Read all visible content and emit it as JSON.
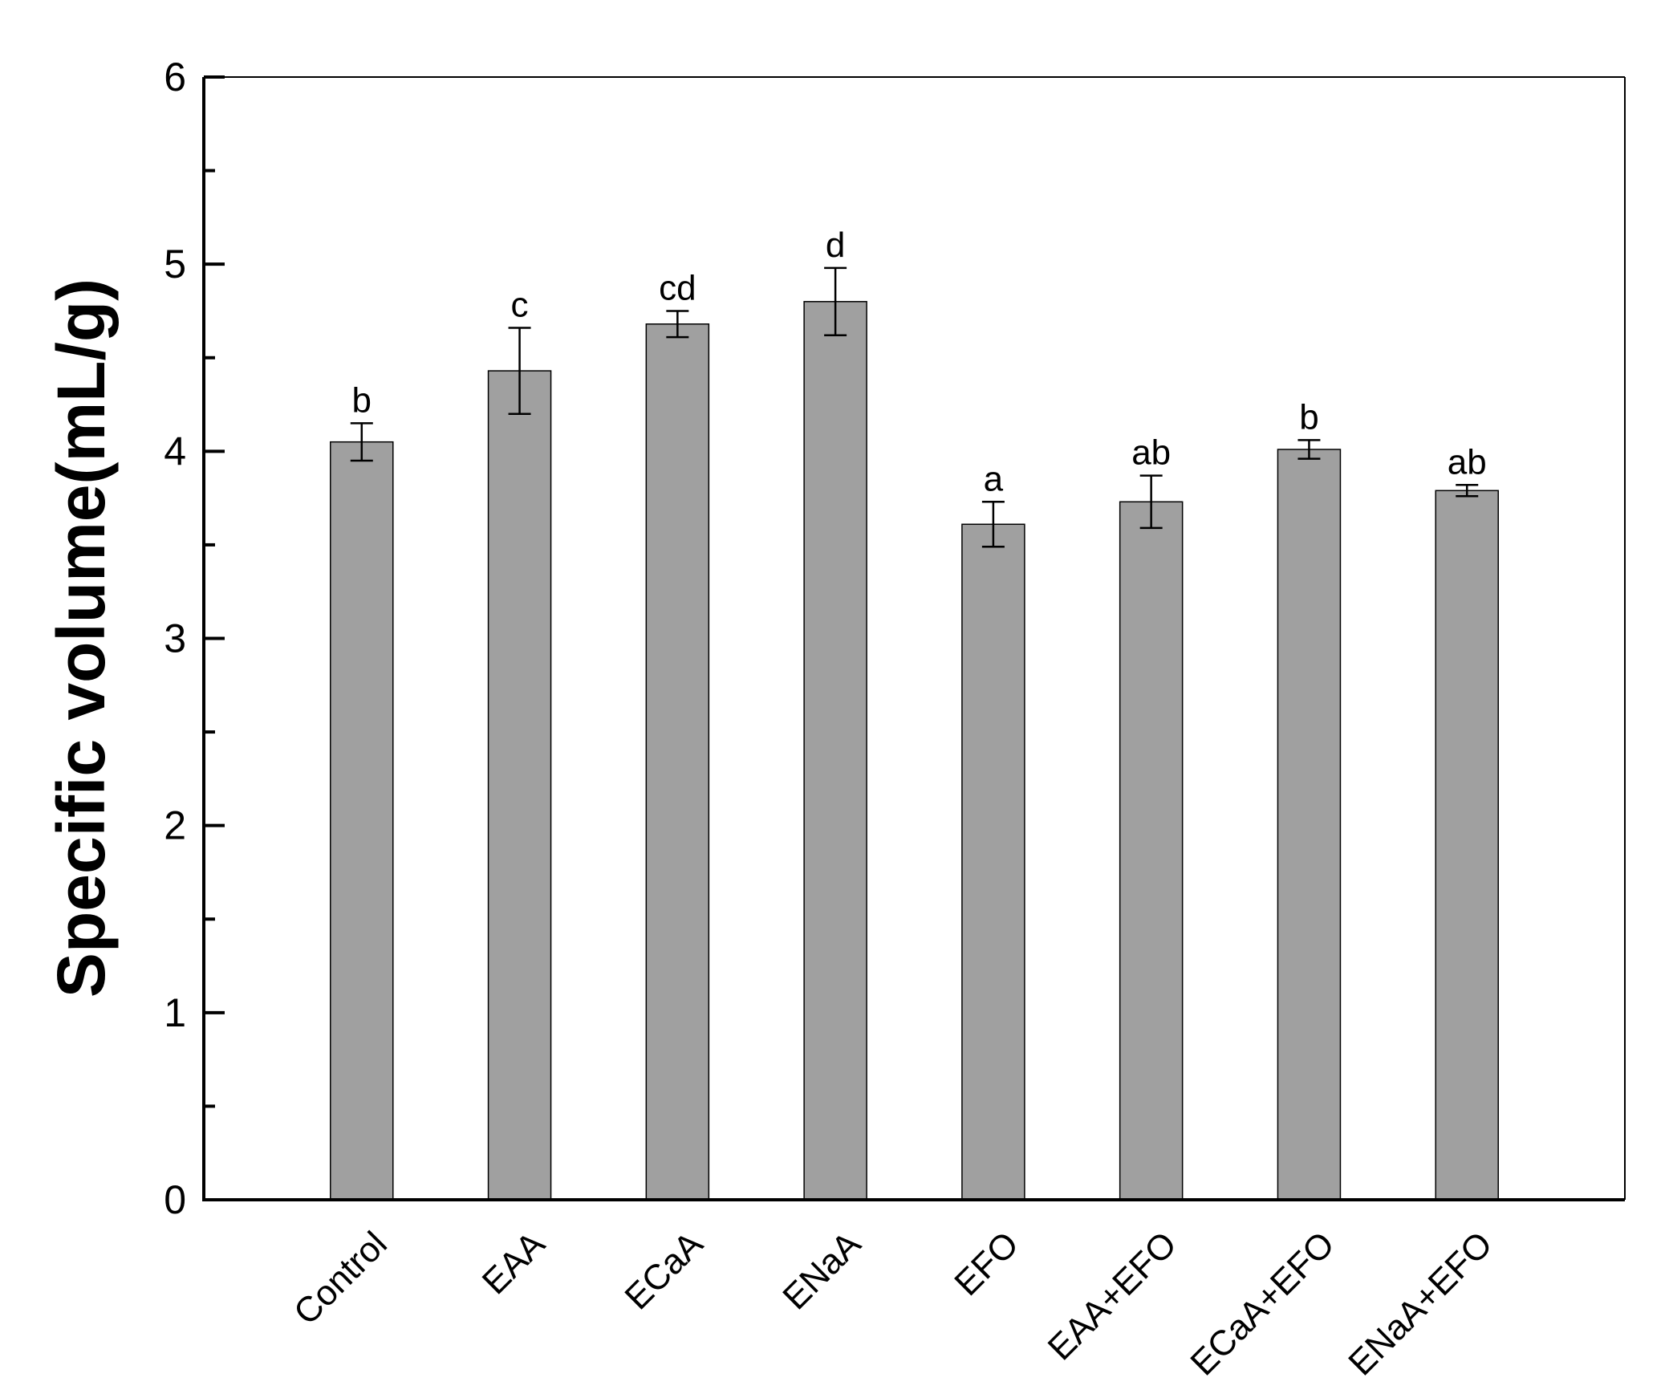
{
  "chart_data": {
    "type": "bar",
    "y_label": "Specific volume(mL/g)",
    "categories": [
      "Control",
      "EAA",
      "ECaA",
      "ENaA",
      "EFO",
      "EAA+EFO",
      "ECaA+EFO",
      "ENaA+EFO"
    ],
    "values": [
      4.05,
      4.43,
      4.68,
      4.8,
      3.61,
      3.73,
      4.01,
      3.79
    ],
    "errors": [
      0.1,
      0.23,
      0.07,
      0.18,
      0.12,
      0.14,
      0.05,
      0.03
    ],
    "annotations": [
      "b",
      "c",
      "cd",
      "d",
      "a",
      "ab",
      "b",
      "ab"
    ],
    "color": "#a0a0a0",
    "ylim": [
      0,
      6
    ],
    "yticks": [
      0,
      1,
      2,
      3,
      4,
      5,
      6
    ],
    "yminorticks": [
      0.5,
      1.5,
      2.5,
      3.5,
      4.5,
      5.5
    ]
  }
}
